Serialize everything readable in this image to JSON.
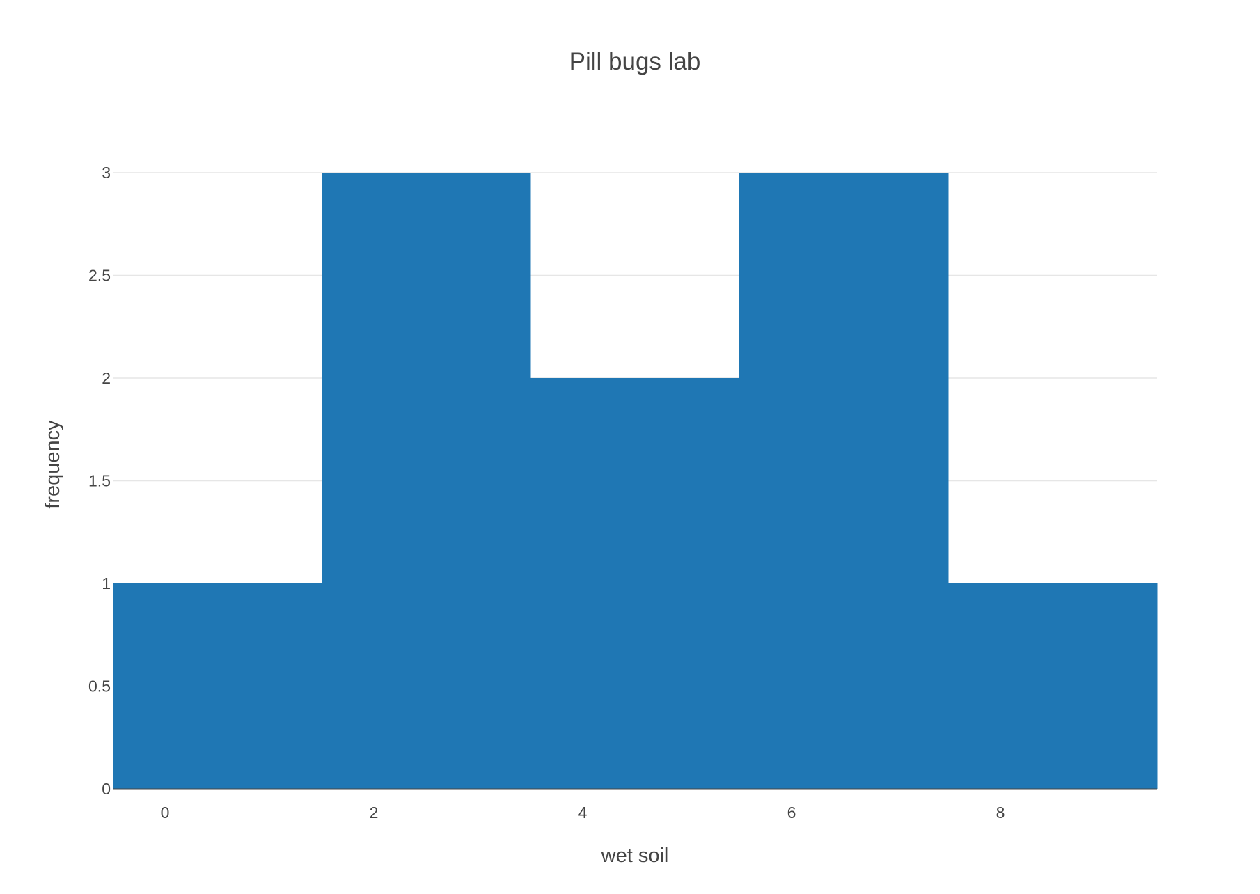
{
  "chart_data": {
    "type": "bar",
    "title": "Pill bugs lab",
    "xlabel": "wet soil",
    "ylabel": "frequency",
    "bins": [
      {
        "start": -0.5,
        "end": 1.5,
        "count": 1
      },
      {
        "start": 1.5,
        "end": 3.5,
        "count": 3
      },
      {
        "start": 3.5,
        "end": 5.5,
        "count": 2
      },
      {
        "start": 5.5,
        "end": 7.5,
        "count": 3
      },
      {
        "start": 7.5,
        "end": 9.5,
        "count": 1
      }
    ],
    "xlim": [
      -0.5,
      9.5
    ],
    "ylim": [
      0,
      3
    ],
    "x_ticks": [
      0,
      2,
      4,
      6,
      8
    ],
    "y_ticks": [
      0,
      0.5,
      1,
      1.5,
      2,
      2.5,
      3
    ],
    "bar_color": "#1f77b4",
    "grid": true
  }
}
